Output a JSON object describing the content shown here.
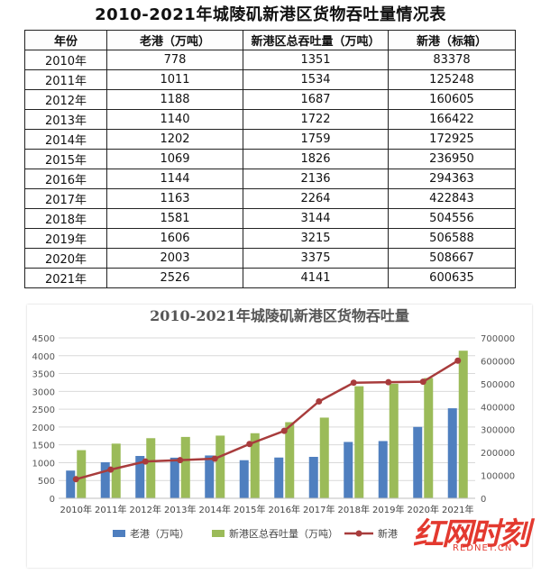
{
  "page": {
    "title": "2010-2021年城陵矶新港区货物吞吐量情况表"
  },
  "table": {
    "headers": [
      "年份",
      "老港（万吨）",
      "新港区总吞吐量（万吨）",
      "新港（标箱）"
    ],
    "rows": [
      [
        "2010年",
        "778",
        "1351",
        "83378"
      ],
      [
        "2011年",
        "1011",
        "1534",
        "125248"
      ],
      [
        "2012年",
        "1188",
        "1687",
        "160605"
      ],
      [
        "2013年",
        "1140",
        "1722",
        "166422"
      ],
      [
        "2014年",
        "1202",
        "1759",
        "172925"
      ],
      [
        "2015年",
        "1069",
        "1826",
        "236950"
      ],
      [
        "2016年",
        "1144",
        "2136",
        "294363"
      ],
      [
        "2017年",
        "1163",
        "2264",
        "422843"
      ],
      [
        "2018年",
        "1581",
        "3144",
        "504556"
      ],
      [
        "2019年",
        "1606",
        "3215",
        "506588"
      ],
      [
        "2020年",
        "2003",
        "3375",
        "508667"
      ],
      [
        "2021年",
        "2526",
        "4141",
        "600635"
      ]
    ]
  },
  "chart_data": {
    "type": "bar",
    "title": "2010-2021年城陵矶新港区货物吞吐量",
    "categories": [
      "2010年",
      "2011年",
      "2012年",
      "2013年",
      "2014年",
      "2015年",
      "2016年",
      "2017年",
      "2018年",
      "2019年",
      "2020年",
      "2021年"
    ],
    "series": [
      {
        "name": "老港（万吨）",
        "type": "bar",
        "axis": "left",
        "color": "#4f7fbf",
        "values": [
          778,
          1011,
          1188,
          1140,
          1202,
          1069,
          1144,
          1163,
          1581,
          1606,
          2003,
          2526
        ]
      },
      {
        "name": "新港区总吞吐量（万吨）",
        "type": "bar",
        "axis": "left",
        "color": "#9bbb59",
        "values": [
          1351,
          1534,
          1687,
          1722,
          1759,
          1826,
          2136,
          2264,
          3144,
          3215,
          3375,
          4141
        ]
      },
      {
        "name": "新港",
        "type": "line",
        "axis": "right",
        "color": "#a83c3c",
        "values": [
          83378,
          125248,
          160605,
          166422,
          172925,
          236950,
          294363,
          422843,
          504556,
          506588,
          508667,
          600635
        ]
      }
    ],
    "ylim_left": [
      0,
      4500
    ],
    "yticks_left": [
      "0",
      "500",
      "1000",
      "1500",
      "2000",
      "2500",
      "3000",
      "3500",
      "4000",
      "4500"
    ],
    "ylim_right": [
      0,
      700000
    ],
    "yticks_right": [
      "0",
      "100000",
      "200000",
      "300000",
      "400000",
      "500000",
      "600000",
      "700000"
    ],
    "grid": true,
    "legend_position": "bottom"
  },
  "watermark": {
    "main": "红网时刻",
    "sub": "REDNET.CN"
  }
}
